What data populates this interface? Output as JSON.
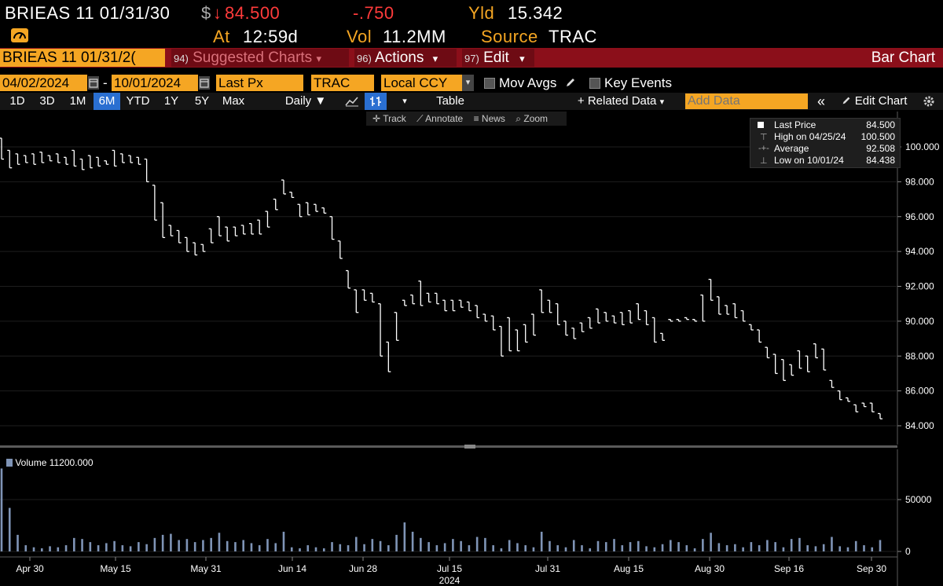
{
  "header": {
    "security": "BRIEAS 11 01/31/30",
    "price_prefix": "$",
    "price_arrow": "↓",
    "price": "84.500",
    "change": "-.750",
    "yld_label": "Yld",
    "yld_value": "15.342",
    "at_label": "At",
    "at_value": "12:59d",
    "vol_label": "Vol",
    "vol_value": "11.2MM",
    "source_label": "Source",
    "source_value": "TRAC",
    "gauge_icon": "gauge-icon"
  },
  "menu": {
    "security_field": "BRIEAS 11 01/31/2(",
    "suggested_num": "94)",
    "suggested_label": "Suggested Charts",
    "actions_num": "96)",
    "actions_label": "Actions",
    "edit_num": "97)",
    "edit_label": "Edit",
    "chart_type": "Bar Chart",
    "arrow": "▾"
  },
  "controls": {
    "start_date": "04/02/2024",
    "dash": "-",
    "end_date": "10/01/2024",
    "price_field": "Last Px",
    "source_field": "TRAC",
    "currency_field": "Local CCY",
    "mov_avgs": "Mov Avgs",
    "key_events": "Key Events"
  },
  "toolbar": {
    "ranges": [
      "1D",
      "3D",
      "1M",
      "6M",
      "YTD",
      "1Y",
      "5Y",
      "Max"
    ],
    "selected_range": "6M",
    "frequency": "Daily ▼",
    "table": "Table",
    "related_data": "+ Related Data",
    "related_arrow": "▾",
    "add_data_placeholder": "Add Data",
    "collapse": "«",
    "edit_chart": "Edit Chart"
  },
  "chart_tools": {
    "track": "Track",
    "annotate": "Annotate",
    "news": "News",
    "zoom": "Zoom"
  },
  "legend": {
    "last_price_label": "Last Price",
    "last_price_value": "84.500",
    "high_label": "High on 04/25/24",
    "high_value": "100.500",
    "average_label": "Average",
    "average_value": "92.508",
    "low_label": "Low on 10/01/24",
    "low_value": "84.438"
  },
  "volume_legend": {
    "label": "Volume",
    "value": "11200.000"
  },
  "colors": {
    "amber": "#f5a623",
    "red": "#ff3b3b",
    "menu_bar": "#8b0f1a",
    "selected": "#2a6fd1",
    "volume_bar": "#7f94b6"
  },
  "chart_data": {
    "type": "bar",
    "subtype": "ohlc",
    "price_axis": {
      "ticks": [
        "84.000",
        "86.000",
        "88.000",
        "90.000",
        "92.000",
        "94.000",
        "96.000",
        "98.000",
        "100.000"
      ],
      "ylim": [
        83,
        101
      ]
    },
    "volume_axis": {
      "ticks": [
        "0",
        "50000"
      ],
      "ylim": [
        0,
        80000
      ]
    },
    "x_ticks": [
      "Apr 30",
      "May 15",
      "May 31",
      "Jun 14",
      "Jun 28",
      "Jul 15",
      "Jul 31",
      "Aug 15",
      "Aug 30",
      "Sep 16",
      "Sep 30"
    ],
    "x_year": "2024",
    "grid": true,
    "legend_position": "top-right",
    "ohlc": [
      [
        100.5,
        99.3
      ],
      [
        99.8,
        98.8
      ],
      [
        99.6,
        99.0
      ],
      [
        99.5,
        99.1
      ],
      [
        99.6,
        99.0
      ],
      [
        99.7,
        99.1
      ],
      [
        99.5,
        99.2
      ],
      [
        99.6,
        99.1
      ],
      [
        99.4,
        99.0
      ],
      [
        99.8,
        98.9
      ],
      [
        99.3,
        98.7
      ],
      [
        99.5,
        98.8
      ],
      [
        99.4,
        98.9
      ],
      [
        99.2,
        99.0
      ],
      [
        99.8,
        98.9
      ],
      [
        99.6,
        99.1
      ],
      [
        99.5,
        99.1
      ],
      [
        99.4,
        99.0
      ],
      [
        99.3,
        98.0
      ],
      [
        97.8,
        95.8
      ],
      [
        96.8,
        94.8
      ],
      [
        95.5,
        94.9
      ],
      [
        95.2,
        94.5
      ],
      [
        94.8,
        94.0
      ],
      [
        94.5,
        93.8
      ],
      [
        94.4,
        94.0
      ],
      [
        95.3,
        94.5
      ],
      [
        96.0,
        94.9
      ],
      [
        95.4,
        94.6
      ],
      [
        95.4,
        94.9
      ],
      [
        95.5,
        95.0
      ],
      [
        95.6,
        95.0
      ],
      [
        95.8,
        95.0
      ],
      [
        96.3,
        95.4
      ],
      [
        97.0,
        96.4
      ],
      [
        98.1,
        97.3
      ],
      [
        97.4,
        97.1
      ],
      [
        96.7,
        96.0
      ],
      [
        96.8,
        96.1
      ],
      [
        96.7,
        96.3
      ],
      [
        96.5,
        96.2
      ],
      [
        96.0,
        94.7
      ],
      [
        94.6,
        93.6
      ],
      [
        92.9,
        91.9
      ],
      [
        91.8,
        90.5
      ],
      [
        91.8,
        91.2
      ],
      [
        91.6,
        91.1
      ],
      [
        91.0,
        88.0
      ],
      [
        88.8,
        87.1
      ],
      [
        90.5,
        88.9
      ],
      [
        91.2,
        90.9
      ],
      [
        91.5,
        91.0
      ],
      [
        92.3,
        90.9
      ],
      [
        91.6,
        91.1
      ],
      [
        91.6,
        91.0
      ],
      [
        91.2,
        90.6
      ],
      [
        91.2,
        90.6
      ],
      [
        91.2,
        90.8
      ],
      [
        91.1,
        90.6
      ],
      [
        90.9,
        90.2
      ],
      [
        90.4,
        90.0
      ],
      [
        90.3,
        89.5
      ],
      [
        89.7,
        88.0
      ],
      [
        90.2,
        88.3
      ],
      [
        89.5,
        88.3
      ],
      [
        89.8,
        88.8
      ],
      [
        90.4,
        89.2
      ],
      [
        91.8,
        90.5
      ],
      [
        91.2,
        90.5
      ],
      [
        91.0,
        89.8
      ],
      [
        90.0,
        89.2
      ],
      [
        89.6,
        89.0
      ],
      [
        89.9,
        89.4
      ],
      [
        90.2,
        89.6
      ],
      [
        90.7,
        89.9
      ],
      [
        90.5,
        90.0
      ],
      [
        90.3,
        89.9
      ],
      [
        90.5,
        89.8
      ],
      [
        90.6,
        89.9
      ],
      [
        91.0,
        90.1
      ],
      [
        90.6,
        89.8
      ],
      [
        90.2,
        88.8
      ],
      [
        89.3,
        88.9
      ],
      [
        90.1,
        90.0
      ],
      [
        90.1,
        90.0
      ],
      [
        90.2,
        90.1
      ],
      [
        90.1,
        90.0
      ],
      [
        91.5,
        90.0
      ],
      [
        92.4,
        91.2
      ],
      [
        91.4,
        90.4
      ],
      [
        90.9,
        90.4
      ],
      [
        91.0,
        90.2
      ],
      [
        90.6,
        90.0
      ],
      [
        89.8,
        89.5
      ],
      [
        89.5,
        88.8
      ],
      [
        88.5,
        87.9
      ],
      [
        88.1,
        87.0
      ],
      [
        87.8,
        86.6
      ],
      [
        87.5,
        86.9
      ],
      [
        88.3,
        87.3
      ],
      [
        88.0,
        87.1
      ],
      [
        88.7,
        87.9
      ],
      [
        88.4,
        87.2
      ],
      [
        86.6,
        86.2
      ],
      [
        86.0,
        85.5
      ],
      [
        85.6,
        85.4
      ],
      [
        85.2,
        84.8
      ],
      [
        85.3,
        85.1
      ],
      [
        85.3,
        84.8
      ],
      [
        84.7,
        84.4
      ]
    ],
    "volume": [
      80000,
      42000,
      16000,
      6000,
      4000,
      3000,
      5000,
      4000,
      6000,
      13000,
      12000,
      9000,
      6000,
      8000,
      10000,
      6000,
      5000,
      9000,
      7000,
      13000,
      16000,
      17000,
      11000,
      12000,
      9000,
      11000,
      13000,
      18000,
      10000,
      9000,
      11000,
      8000,
      6000,
      12000,
      8000,
      19000,
      4000,
      3000,
      6000,
      4000,
      3000,
      9000,
      7000,
      6000,
      14000,
      7000,
      12000,
      10000,
      6000,
      16000,
      28000,
      19000,
      13000,
      9000,
      6000,
      8000,
      12000,
      10000,
      6000,
      14000,
      13000,
      6000,
      3000,
      11000,
      8000,
      6000,
      4000,
      19000,
      10000,
      6000,
      4000,
      11000,
      6000,
      3000,
      10000,
      9000,
      12000,
      6000,
      9000,
      10000,
      5000,
      4000,
      7000,
      11000,
      9000,
      6000,
      3000,
      12000,
      18000,
      8000,
      6000,
      7000,
      4000,
      9000,
      6000,
      11000,
      9000,
      4000,
      12000,
      13000,
      6000,
      5000,
      7000,
      14000,
      5000,
      4000,
      10000,
      6000,
      4000,
      11000
    ]
  }
}
